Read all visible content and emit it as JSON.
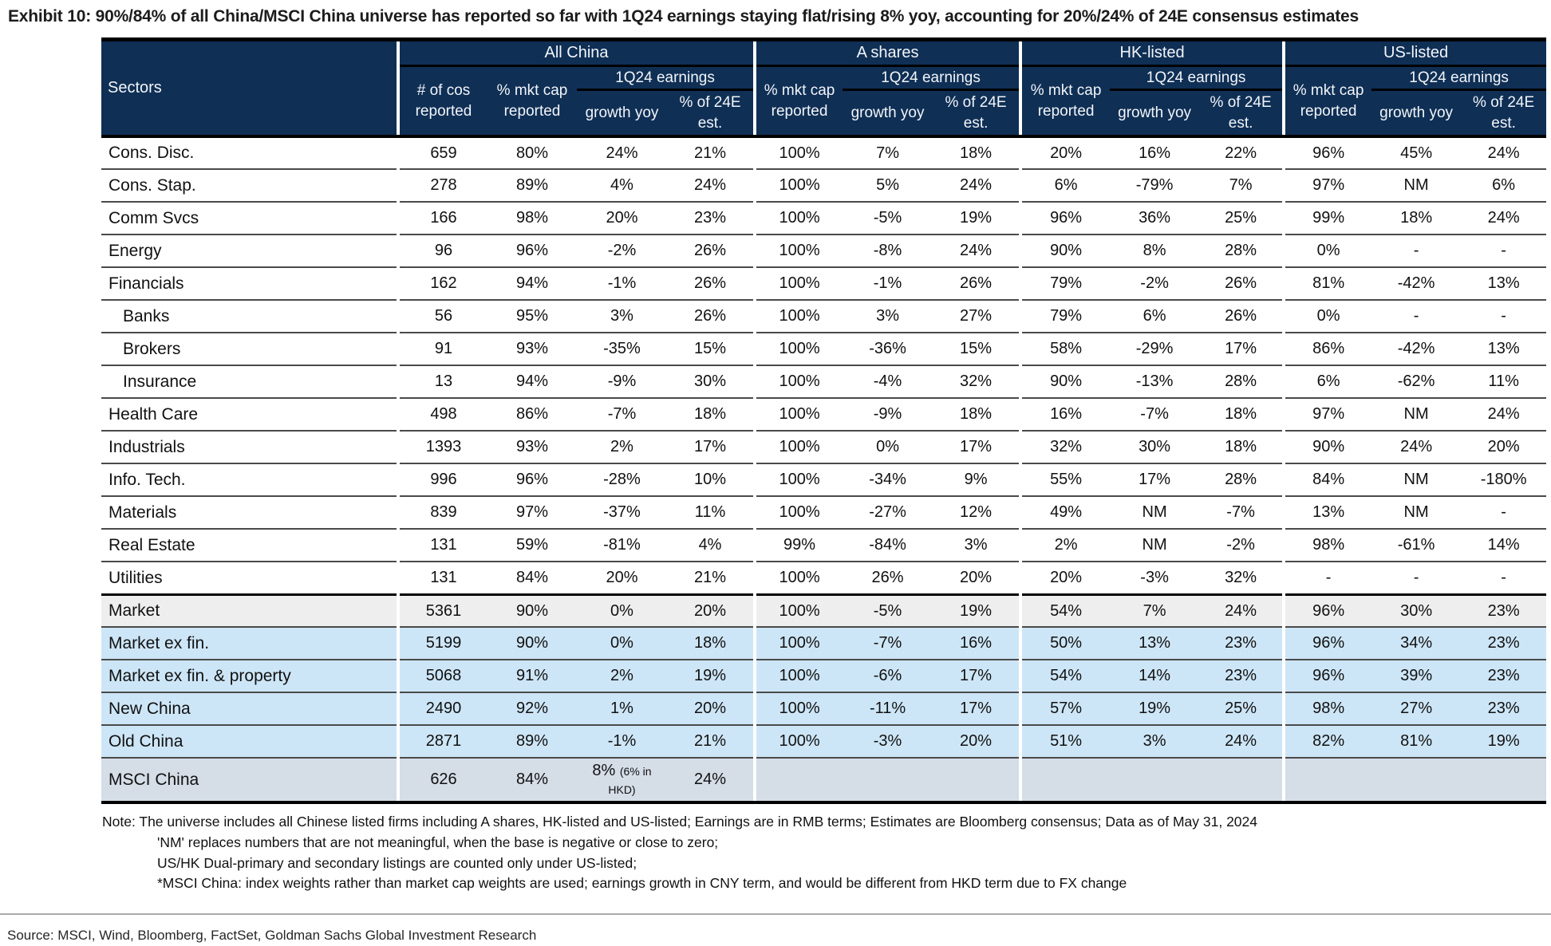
{
  "title": "Exhibit 10: 90%/84% of all China/MSCI China universe has reported so far with 1Q24 earnings staying flat/rising 8% yoy, accounting for 20%/24% of 24E consensus estimates",
  "colors": {
    "header_navy": "#0f2f55",
    "row_blue": "#cde6f7",
    "row_gray": "#eeeeee",
    "row_msci": "#d5dde7"
  },
  "table": {
    "sectors_header": "Sectors",
    "groups": [
      "All China",
      "A shares",
      "HK-listed",
      "US-listed"
    ],
    "subheaders": {
      "cos": "# of cos reported",
      "mktcap": "% mkt cap reported",
      "earnings": "1Q24 earnings",
      "growth": "growth yoy",
      "est": "% of 24E est."
    },
    "rows": [
      {
        "sector": "Cons. Disc.",
        "bg": "white",
        "cells": [
          "659",
          "80%",
          "24%",
          "21%",
          "100%",
          "7%",
          "18%",
          "20%",
          "16%",
          "22%",
          "96%",
          "45%",
          "24%"
        ]
      },
      {
        "sector": "Cons. Stap.",
        "bg": "white",
        "cells": [
          "278",
          "89%",
          "4%",
          "24%",
          "100%",
          "5%",
          "24%",
          "6%",
          "-79%",
          "7%",
          "97%",
          "NM",
          "6%"
        ]
      },
      {
        "sector": "Comm Svcs",
        "bg": "white",
        "cells": [
          "166",
          "98%",
          "20%",
          "23%",
          "100%",
          "-5%",
          "19%",
          "96%",
          "36%",
          "25%",
          "99%",
          "18%",
          "24%"
        ]
      },
      {
        "sector": "Energy",
        "bg": "white",
        "cells": [
          "96",
          "96%",
          "-2%",
          "26%",
          "100%",
          "-8%",
          "24%",
          "90%",
          "8%",
          "28%",
          "0%",
          "-",
          "-"
        ]
      },
      {
        "sector": "Financials",
        "bg": "white",
        "cells": [
          "162",
          "94%",
          "-1%",
          "26%",
          "100%",
          "-1%",
          "26%",
          "79%",
          "-2%",
          "26%",
          "81%",
          "-42%",
          "13%"
        ]
      },
      {
        "sector": "Banks",
        "bg": "white",
        "indent": true,
        "cells": [
          "56",
          "95%",
          "3%",
          "26%",
          "100%",
          "3%",
          "27%",
          "79%",
          "6%",
          "26%",
          "0%",
          "-",
          "-"
        ]
      },
      {
        "sector": "Brokers",
        "bg": "white",
        "indent": true,
        "cells": [
          "91",
          "93%",
          "-35%",
          "15%",
          "100%",
          "-36%",
          "15%",
          "58%",
          "-29%",
          "17%",
          "86%",
          "-42%",
          "13%"
        ]
      },
      {
        "sector": "Insurance",
        "bg": "white",
        "indent": true,
        "cells": [
          "13",
          "94%",
          "-9%",
          "30%",
          "100%",
          "-4%",
          "32%",
          "90%",
          "-13%",
          "28%",
          "6%",
          "-62%",
          "11%"
        ]
      },
      {
        "sector": "Health Care",
        "bg": "white",
        "cells": [
          "498",
          "86%",
          "-7%",
          "18%",
          "100%",
          "-9%",
          "18%",
          "16%",
          "-7%",
          "18%",
          "97%",
          "NM",
          "24%"
        ]
      },
      {
        "sector": "Industrials",
        "bg": "white",
        "cells": [
          "1393",
          "93%",
          "2%",
          "17%",
          "100%",
          "0%",
          "17%",
          "32%",
          "30%",
          "18%",
          "90%",
          "24%",
          "20%"
        ]
      },
      {
        "sector": "Info. Tech.",
        "bg": "white",
        "cells": [
          "996",
          "96%",
          "-28%",
          "10%",
          "100%",
          "-34%",
          "9%",
          "55%",
          "17%",
          "28%",
          "84%",
          "NM",
          "-180%"
        ]
      },
      {
        "sector": "Materials",
        "bg": "white",
        "cells": [
          "839",
          "97%",
          "-37%",
          "11%",
          "100%",
          "-27%",
          "12%",
          "49%",
          "NM",
          "-7%",
          "13%",
          "NM",
          "-"
        ]
      },
      {
        "sector": "Real Estate",
        "bg": "white",
        "cells": [
          "131",
          "59%",
          "-81%",
          "4%",
          "99%",
          "-84%",
          "3%",
          "2%",
          "NM",
          "-2%",
          "98%",
          "-61%",
          "14%"
        ]
      },
      {
        "sector": "Utilities",
        "bg": "white",
        "cells": [
          "131",
          "84%",
          "20%",
          "21%",
          "100%",
          "26%",
          "20%",
          "20%",
          "-3%",
          "32%",
          "-",
          "-",
          "-"
        ]
      },
      {
        "sector": "Market",
        "bg": "gray",
        "thick_top": true,
        "cells": [
          "5361",
          "90%",
          "0%",
          "20%",
          "100%",
          "-5%",
          "19%",
          "54%",
          "7%",
          "24%",
          "96%",
          "30%",
          "23%"
        ]
      },
      {
        "sector": "Market ex fin.",
        "bg": "blue",
        "cells": [
          "5199",
          "90%",
          "0%",
          "18%",
          "100%",
          "-7%",
          "16%",
          "50%",
          "13%",
          "23%",
          "96%",
          "34%",
          "23%"
        ]
      },
      {
        "sector": "Market ex fin. & property",
        "bg": "blue",
        "cells": [
          "5068",
          "91%",
          "2%",
          "19%",
          "100%",
          "-6%",
          "17%",
          "54%",
          "14%",
          "23%",
          "96%",
          "39%",
          "23%"
        ]
      },
      {
        "sector": "New China",
        "bg": "blue",
        "cells": [
          "2490",
          "92%",
          "1%",
          "20%",
          "100%",
          "-11%",
          "17%",
          "57%",
          "19%",
          "25%",
          "98%",
          "27%",
          "23%"
        ]
      },
      {
        "sector": "Old China",
        "bg": "blue",
        "cells": [
          "2871",
          "89%",
          "-1%",
          "21%",
          "100%",
          "-3%",
          "20%",
          "51%",
          "3%",
          "24%",
          "82%",
          "81%",
          "19%"
        ]
      },
      {
        "sector": "MSCI China",
        "bg": "msci",
        "cells": [
          "626",
          "84%",
          {
            "main": "8%",
            "note": "(6% in HKD)"
          },
          "24%",
          "",
          "",
          "",
          "",
          "",
          "",
          "",
          "",
          ""
        ]
      }
    ]
  },
  "notes": [
    "Note: The universe includes all Chinese listed firms including A shares, HK-listed and US-listed; Earnings are in RMB terms; Estimates are Bloomberg consensus; Data as of May 31, 2024",
    "'NM' replaces numbers that are not meaningful, when the base is negative or close to zero;",
    "US/HK Dual-primary and secondary listings are counted only under US-listed;",
    "*MSCI China: index weights rather than market cap weights are used; earnings growth in CNY term, and would be different from HKD term due to FX change"
  ],
  "source": "Source: MSCI, Wind, Bloomberg, FactSet, Goldman Sachs Global Investment Research"
}
